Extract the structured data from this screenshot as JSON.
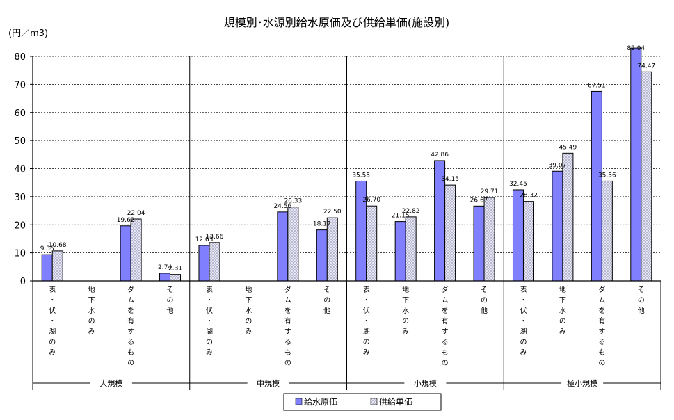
{
  "chart_data": {
    "type": "bar",
    "title": "規模別･水源別給水原価及び供給単価(施設別)",
    "ylabel": "(円／m3)",
    "ylim": [
      0,
      80
    ],
    "yticks": [
      0,
      10,
      20,
      30,
      40,
      50,
      60,
      70,
      80
    ],
    "grid": true,
    "legend_position": "bottom",
    "groups": [
      "大規模",
      "中規模",
      "小規模",
      "極小規模"
    ],
    "categories": [
      "表・伏・湖のみ",
      "地下水のみ",
      "ダムを有するもの",
      "その他"
    ],
    "series": [
      {
        "name": "給水原価",
        "color": "#8080ff",
        "values": [
          [
            9.36,
            null,
            19.62,
            2.74
          ],
          [
            12.63,
            null,
            24.56,
            18.17
          ],
          [
            35.55,
            21.15,
            42.86,
            26.67
          ],
          [
            32.45,
            39.07,
            67.51,
            82.94
          ]
        ],
        "labels": [
          [
            "9.36",
            "",
            "19.62",
            "2.74"
          ],
          [
            "12.63",
            "",
            "24.56",
            "18.17"
          ],
          [
            "35.55",
            "21.15",
            "42.86",
            "26.67"
          ],
          [
            "32.45",
            "39.07",
            "67.51",
            "82.94"
          ]
        ]
      },
      {
        "name": "供給単価",
        "color": "#d8d8f0",
        "values": [
          [
            10.68,
            null,
            22.04,
            2.31
          ],
          [
            13.66,
            null,
            26.33,
            22.5
          ],
          [
            26.7,
            22.82,
            34.15,
            29.71
          ],
          [
            28.32,
            45.49,
            35.56,
            74.47
          ]
        ],
        "labels": [
          [
            "10.68",
            "",
            "22.04",
            "2.31"
          ],
          [
            "13.66",
            "",
            "26.33",
            "22.50"
          ],
          [
            "26.70",
            "22.82",
            "34.15",
            "29.71"
          ],
          [
            "28.32",
            "45.49",
            "35.56",
            "74.47"
          ]
        ]
      }
    ]
  }
}
